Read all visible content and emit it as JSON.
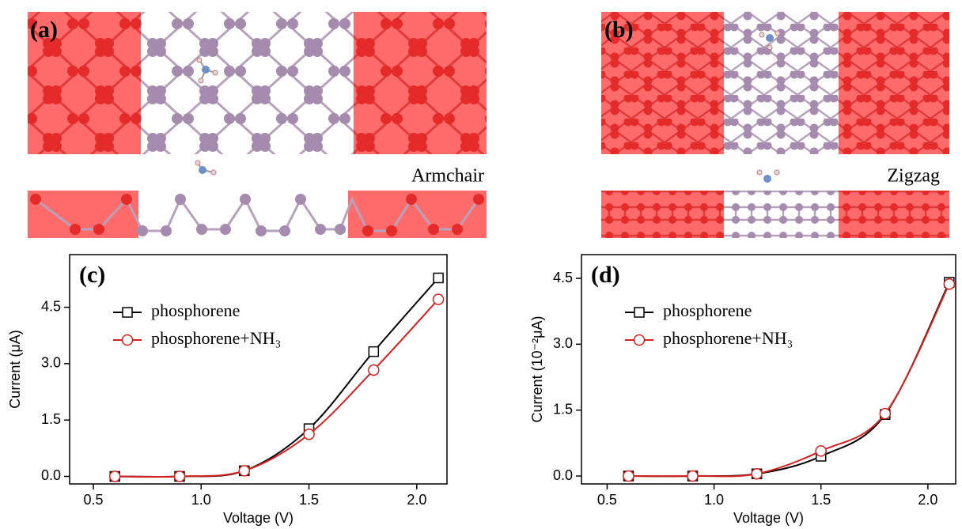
{
  "panels": [
    {
      "label": "(a)",
      "caption": "Armchair"
    },
    {
      "label": "(b)",
      "caption": "Zigzag"
    }
  ],
  "chart_data": [
    {
      "type": "line",
      "panel_label": "(c)",
      "x_label": "Voltage (V)",
      "y_label": "Current (μA)",
      "x": [
        0.6,
        0.9,
        1.2,
        1.5,
        1.8,
        2.1
      ],
      "series": [
        {
          "name": "phosphorene",
          "color": "#000000",
          "marker": "square",
          "values": [
            0,
            0,
            0.15,
            1.27,
            3.32,
            5.28
          ]
        },
        {
          "name": "phosphorene+NH₃",
          "color": "#d42020",
          "marker": "circle",
          "values": [
            0,
            0,
            0.15,
            1.12,
            2.83,
            4.71
          ]
        }
      ],
      "xlim": [
        0.39,
        2.14
      ],
      "ylim": [
        -0.2,
        5.9
      ],
      "xticks": [
        0.5,
        {
          "value": 1,
          "label": "1.0"
        },
        1.5,
        {
          "value": 2,
          "label": "2.0"
        }
      ],
      "yticks": [
        {
          "value": 0,
          "label": "0.0"
        },
        1.5,
        {
          "value": 3,
          "label": "3.0"
        },
        4.5
      ],
      "legend": "upper left"
    },
    {
      "type": "line",
      "panel_label": "(d)",
      "x_label": "Voltage (V)",
      "y_label": "Current (10⁻²μA)",
      "x": [
        0.6,
        0.9,
        1.2,
        1.5,
        1.8,
        2.1
      ],
      "series": [
        {
          "name": "phosphorene",
          "color": "#000000",
          "marker": "square",
          "values": [
            0,
            0,
            0.05,
            0.45,
            1.4,
            4.41
          ]
        },
        {
          "name": "phosphorene+NH₃",
          "color": "#d42020",
          "marker": "circle",
          "values": [
            0,
            0,
            0.05,
            0.57,
            1.42,
            4.37
          ]
        }
      ],
      "xlim": [
        0.38,
        2.13
      ],
      "ylim": [
        -0.18,
        5.04
      ],
      "xticks": [
        0.5,
        {
          "value": 1,
          "label": "1.0"
        },
        1.5,
        {
          "value": 2,
          "label": "2.0"
        }
      ],
      "yticks": [
        {
          "value": 0,
          "label": "0.0"
        },
        1.5,
        {
          "value": 3,
          "label": "3.0"
        },
        4.5
      ],
      "legend": "upper left"
    }
  ]
}
